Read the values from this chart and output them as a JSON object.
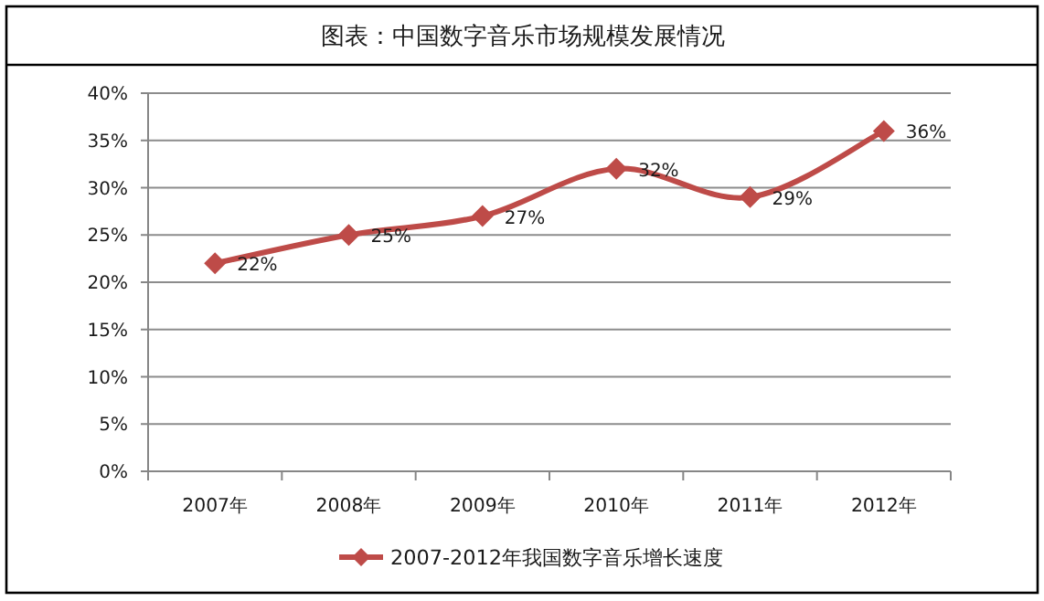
{
  "chart_data": {
    "type": "line",
    "title": "图表：中国数字音乐市场规模发展情况",
    "categories": [
      "2007年",
      "2008年",
      "2009年",
      "2010年",
      "2011年",
      "2012年"
    ],
    "series": [
      {
        "name": "2007-2012年我国数字音乐增长速度",
        "color": "#be4b48",
        "values": [
          22,
          25,
          27,
          32,
          29,
          36
        ],
        "value_labels": [
          "22%",
          "25%",
          "27%",
          "32%",
          "29%",
          "36%"
        ]
      }
    ],
    "ylim": [
      0,
      40
    ],
    "yticks": [
      {
        "value": 0,
        "label": "0%"
      },
      {
        "value": 5,
        "label": "5%"
      },
      {
        "value": 10,
        "label": "10%"
      },
      {
        "value": 15,
        "label": "15%"
      },
      {
        "value": 20,
        "label": "20%"
      },
      {
        "value": 25,
        "label": "25%"
      },
      {
        "value": 30,
        "label": "30%"
      },
      {
        "value": 35,
        "label": "35%"
      },
      {
        "value": 40,
        "label": "40%"
      }
    ],
    "grid": "y",
    "legend": "bottom",
    "marker": "diamond",
    "line_style": "solid"
  }
}
